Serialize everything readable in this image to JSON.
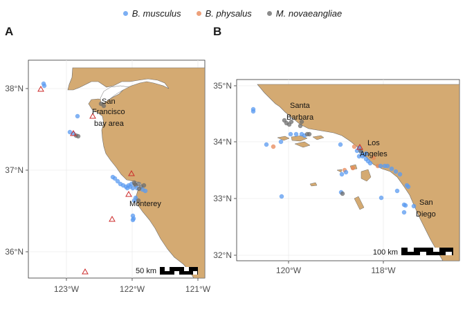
{
  "legend": [
    {
      "label": "B. musculus",
      "color": "#5b9bf0"
    },
    {
      "label": "B. physalus",
      "color": "#e8895a"
    },
    {
      "label": "M. novaeangliae",
      "color": "#6e6e6e"
    }
  ],
  "colors": {
    "land": "#d4aa72",
    "triangle": "#cc2a2a",
    "grid": "#ebebeb"
  },
  "panel_a": {
    "label": "A",
    "x_ticks": [
      "123°W",
      "122°W",
      "121°W"
    ],
    "y_ticks": [
      "38°N",
      "37°N",
      "36°N"
    ],
    "places": [
      "San",
      "Francisco",
      "bay area",
      "Monterey"
    ],
    "scalebar": "50 km"
  },
  "panel_b": {
    "label": "B",
    "x_ticks": [
      "120°W",
      "118°W"
    ],
    "y_ticks": [
      "35°N",
      "34°N",
      "33°N",
      "32°N"
    ],
    "places": [
      "Santa",
      "Barbara",
      "Los",
      "Angeles",
      "San",
      "Diego"
    ],
    "scalebar": "100 km"
  }
}
